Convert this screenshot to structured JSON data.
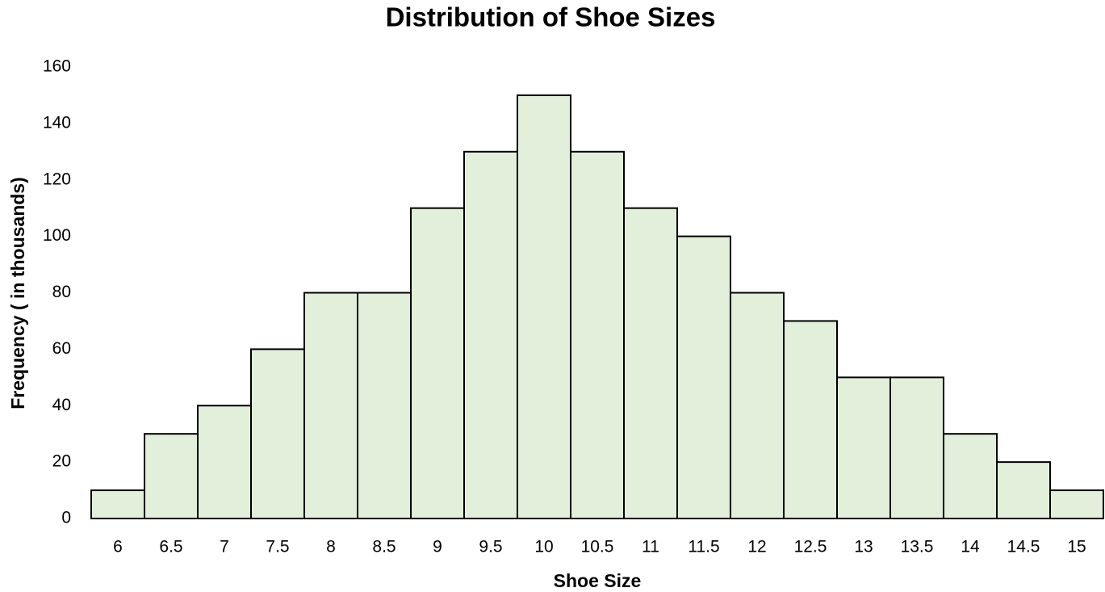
{
  "chart_data": {
    "type": "bar",
    "title": "Distribution of Shoe Sizes",
    "x_label": "Shoe Size",
    "y_label": "Frequency ( in thousands)",
    "categories": [
      "6",
      "6.5",
      "7",
      "7.5",
      "8",
      "8.5",
      "9",
      "9.5",
      "10",
      "10.5",
      "11",
      "11.5",
      "12",
      "12.5",
      "13",
      "13.5",
      "14",
      "14.5",
      "15"
    ],
    "values": [
      10,
      30,
      40,
      60,
      80,
      80,
      110,
      130,
      150,
      130,
      110,
      100,
      80,
      70,
      50,
      50,
      30,
      20,
      10
    ],
    "color": "#e2efda",
    "ylim": [
      0,
      160
    ],
    "yticks": [
      0,
      20,
      40,
      60,
      80,
      100,
      120,
      140,
      160
    ],
    "grid": false
  }
}
